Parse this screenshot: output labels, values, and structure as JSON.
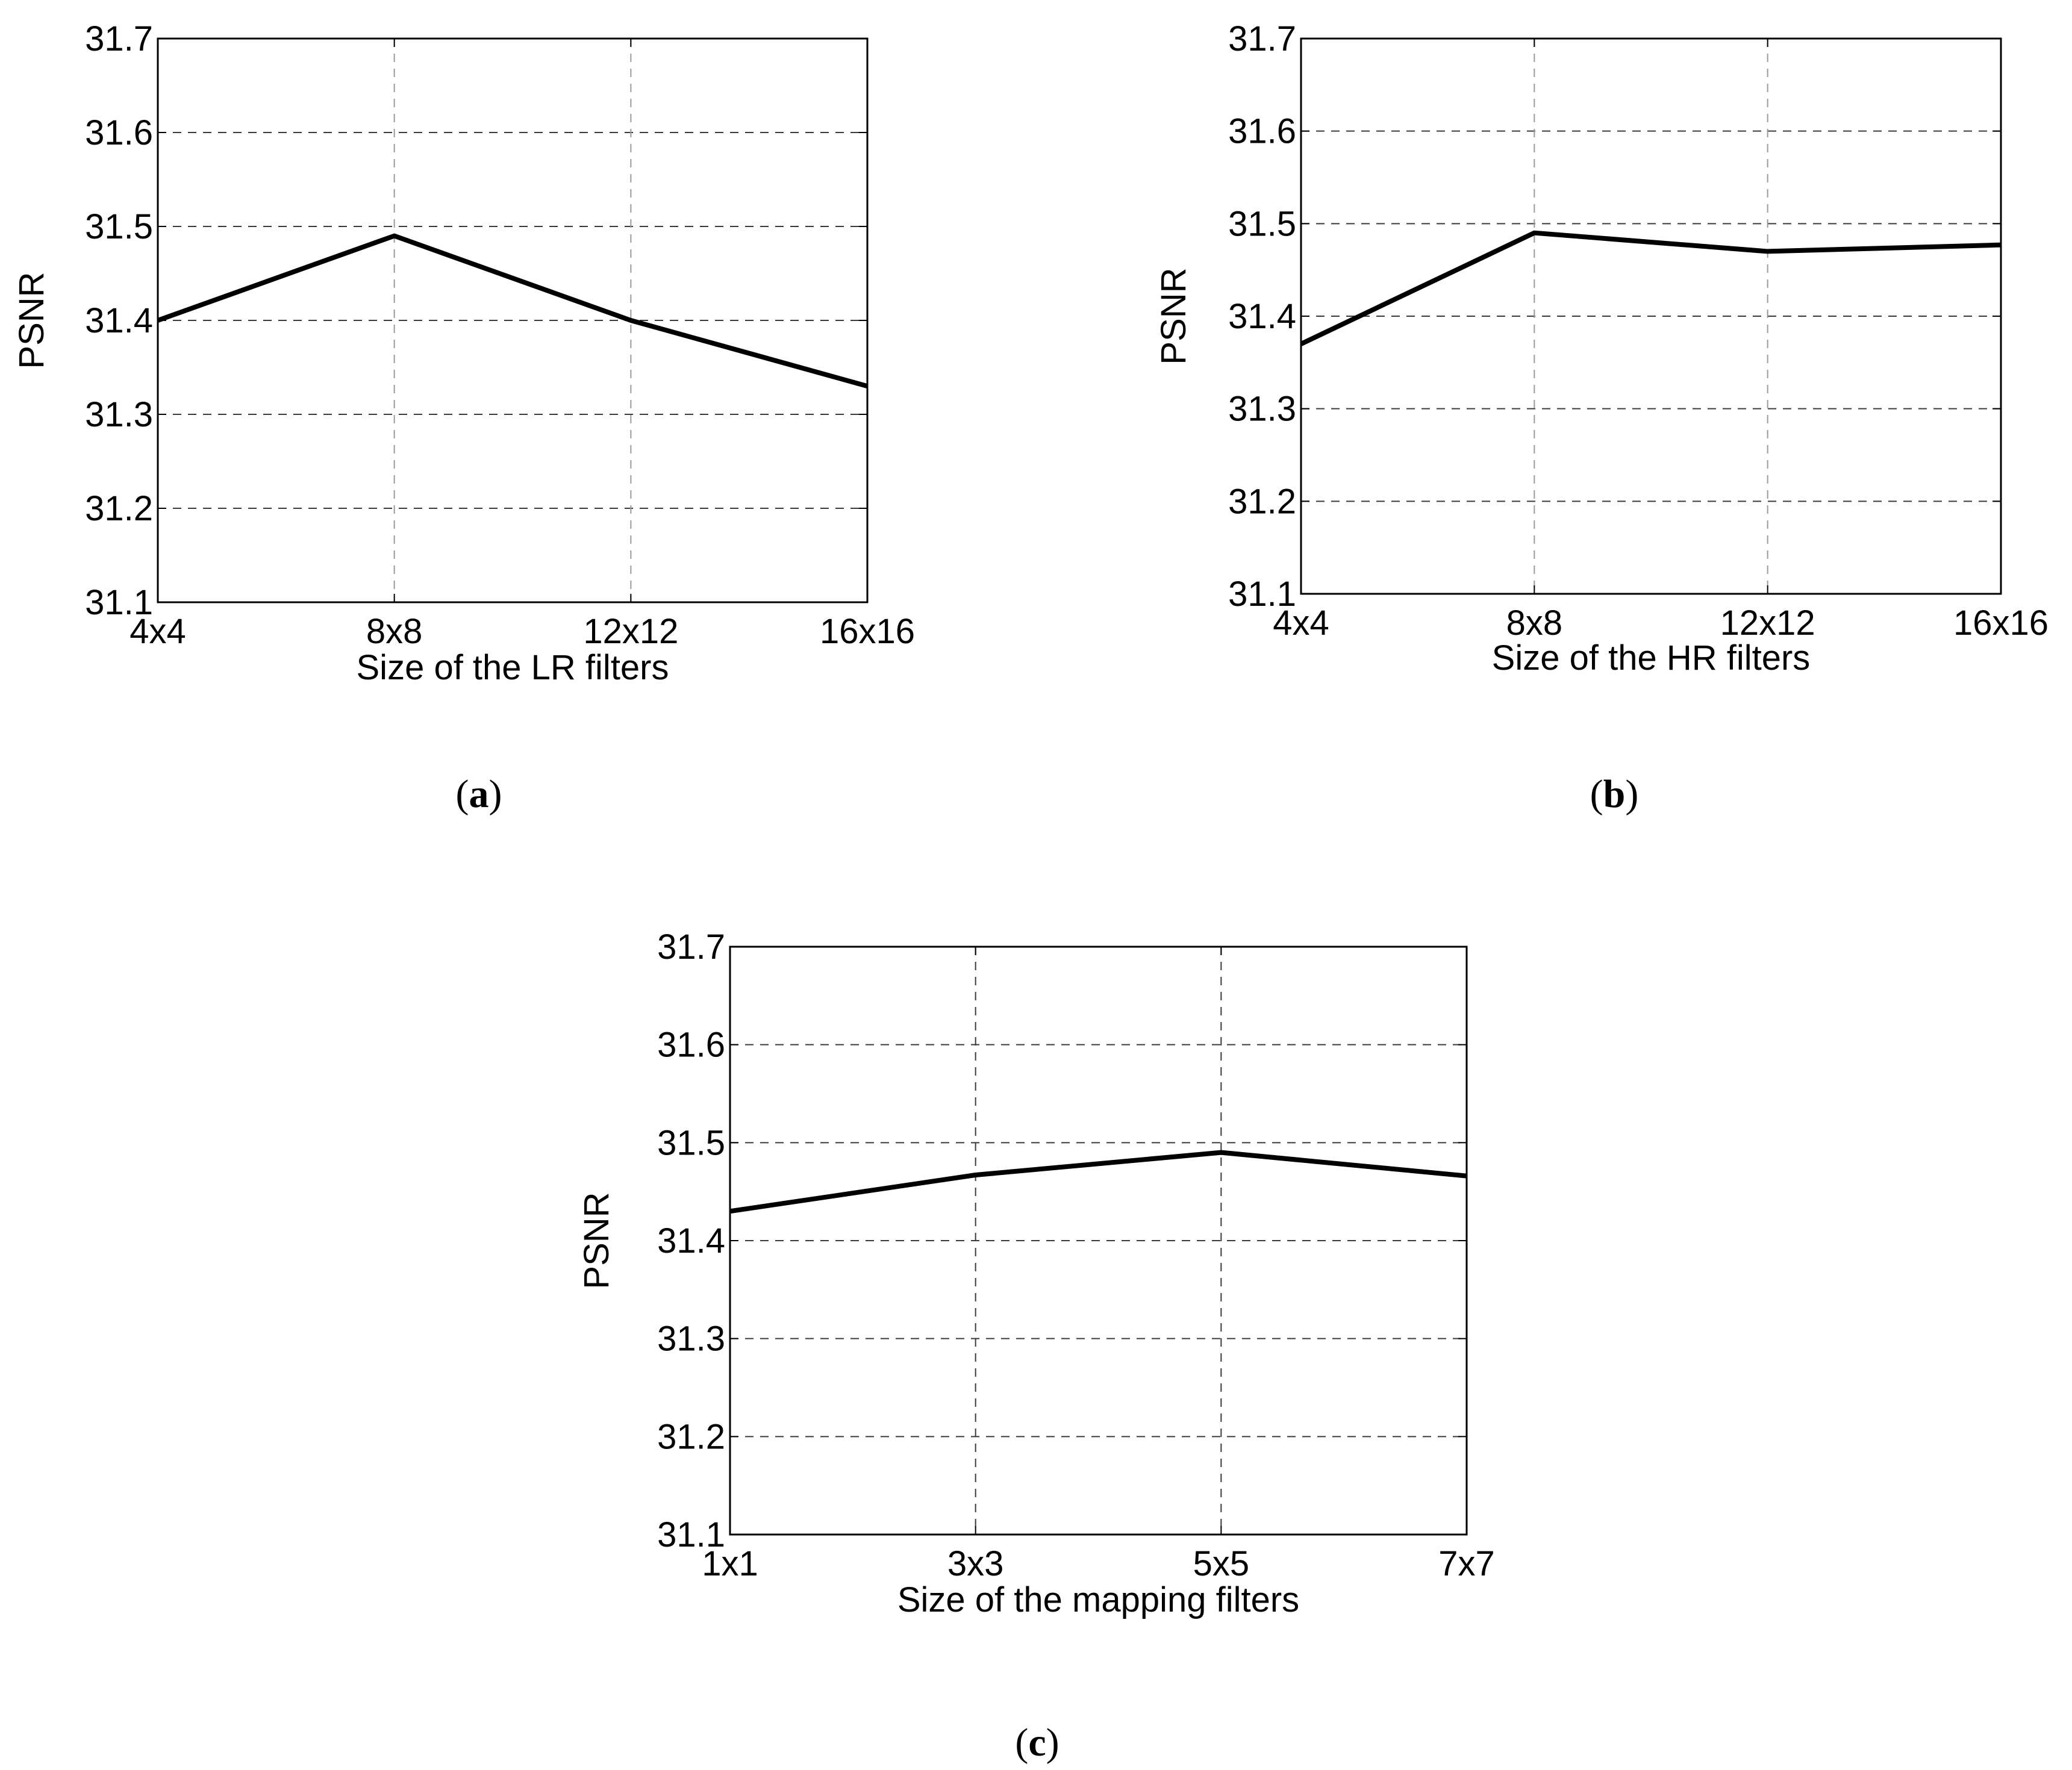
{
  "chart_data": [
    {
      "type": "line",
      "panel_label": "a",
      "title": "",
      "xlabel": "Size of the LR filters",
      "ylabel": "PSNR",
      "categories": [
        "4x4",
        "8x8",
        "12x12",
        "16x16"
      ],
      "values": [
        31.4,
        31.49,
        31.4,
        31.33
      ],
      "ylim": [
        31.1,
        31.7
      ],
      "yticks": [
        "31.1",
        "31.2",
        "31.3",
        "31.4",
        "31.5",
        "31.6",
        "31.7"
      ],
      "grid": true
    },
    {
      "type": "line",
      "panel_label": "b",
      "title": "",
      "xlabel": "Size of the HR filters",
      "ylabel": "PSNR",
      "categories": [
        "4x4",
        "8x8",
        "12x12",
        "16x16"
      ],
      "values": [
        31.37,
        31.49,
        31.47,
        31.477
      ],
      "ylim": [
        31.1,
        31.7
      ],
      "yticks": [
        "31.1",
        "31.2",
        "31.3",
        "31.4",
        "31.5",
        "31.6",
        "31.7"
      ],
      "grid": true
    },
    {
      "type": "line",
      "panel_label": "c",
      "title": "",
      "xlabel": "Size of the mapping filters",
      "ylabel": "PSNR",
      "categories": [
        "1x1",
        "3x3",
        "5x5",
        "7x7"
      ],
      "values": [
        31.43,
        31.467,
        31.49,
        31.466
      ],
      "ylim": [
        31.1,
        31.7
      ],
      "yticks": [
        "31.1",
        "31.2",
        "31.3",
        "31.4",
        "31.5",
        "31.6",
        "31.7"
      ],
      "grid": true
    }
  ]
}
